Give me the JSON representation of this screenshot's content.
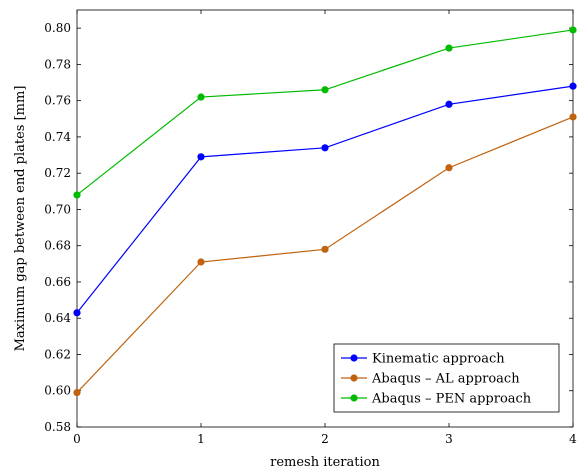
{
  "chart_data": {
    "type": "line",
    "title": "",
    "xlabel": "remesh iteration",
    "ylabel": "Maximum gap between end plates [mm]",
    "x": [
      0,
      1,
      2,
      3,
      4
    ],
    "xlim": [
      0,
      4
    ],
    "ylim": [
      0.58,
      0.81
    ],
    "xticks": [
      "0",
      "1",
      "2",
      "3",
      "4"
    ],
    "yticks": [
      "0.58",
      "0.60",
      "0.62",
      "0.64",
      "0.66",
      "0.68",
      "0.70",
      "0.72",
      "0.74",
      "0.76",
      "0.78",
      "0.80"
    ],
    "grid": false,
    "legend_position": "bottom-right",
    "series": [
      {
        "name": "Kinematic approach",
        "color": "#0000ff",
        "values": [
          0.643,
          0.729,
          0.734,
          0.758,
          0.768
        ]
      },
      {
        "name": "Abaqus – AL approach",
        "color": "#c0620e",
        "values": [
          0.599,
          0.671,
          0.678,
          0.723,
          0.751
        ]
      },
      {
        "name": "Abaqus – PEN approach",
        "color": "#00bb00",
        "values": [
          0.708,
          0.762,
          0.766,
          0.789,
          0.799
        ]
      }
    ]
  }
}
